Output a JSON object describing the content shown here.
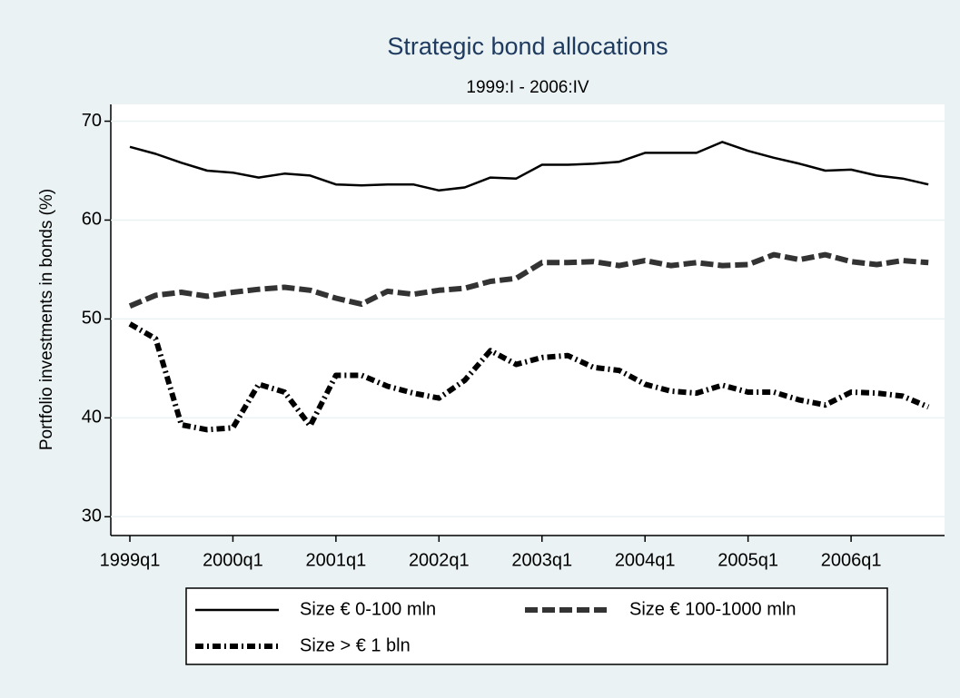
{
  "chart_data": {
    "type": "line",
    "title": "Strategic bond allocations",
    "subtitle": "1999:I - 2006:IV",
    "y_label": "Portfolio investments in bonds (%)",
    "categories": [
      "1999q1",
      null,
      null,
      null,
      "2000q1",
      null,
      null,
      null,
      "2001q1",
      null,
      null,
      null,
      "2002q1",
      null,
      null,
      null,
      "2003q1",
      null,
      null,
      null,
      "2004q1",
      null,
      null,
      null,
      "2005q1",
      null,
      null,
      null,
      "2006q1",
      null,
      null,
      null
    ],
    "series": [
      {
        "name": "Size € 0-100 mln",
        "color": "#000000",
        "style": "solid",
        "width": 2.5,
        "values": [
          67.4,
          66.7,
          65.8,
          65.0,
          64.8,
          64.3,
          64.7,
          64.5,
          63.6,
          63.5,
          63.6,
          63.6,
          63.0,
          63.3,
          64.3,
          64.2,
          65.6,
          65.6,
          65.7,
          65.9,
          66.8,
          66.8,
          66.8,
          67.9,
          67.0,
          66.3,
          65.7,
          65.0,
          65.1,
          64.5,
          64.2,
          63.6
        ]
      },
      {
        "name": "Size € 100-1000 mln",
        "color": "#333333",
        "style": "dash",
        "width": 6,
        "values": [
          51.3,
          52.4,
          52.7,
          52.3,
          52.7,
          53.0,
          53.2,
          52.9,
          52.1,
          51.5,
          52.8,
          52.5,
          52.9,
          53.1,
          53.8,
          54.1,
          55.7,
          55.7,
          55.8,
          55.4,
          55.9,
          55.4,
          55.7,
          55.4,
          55.5,
          56.5,
          56.0,
          56.5,
          55.8,
          55.5,
          55.9,
          55.7
        ]
      },
      {
        "name": "Size > € 1 bln",
        "color": "#000000",
        "style": "dash-dot",
        "width": 6,
        "values": [
          49.5,
          48.0,
          39.3,
          38.8,
          39.0,
          43.4,
          42.6,
          39.2,
          44.3,
          44.3,
          43.2,
          42.5,
          42.0,
          43.8,
          46.8,
          45.4,
          46.1,
          46.3,
          45.1,
          44.8,
          43.4,
          42.7,
          42.5,
          43.3,
          42.6,
          42.6,
          41.8,
          41.3,
          42.6,
          42.5,
          42.2,
          41.1
        ]
      }
    ],
    "ylim": [
      28.1,
      71.7
    ],
    "yticks": [
      30,
      40,
      50,
      60,
      70
    ],
    "grid": true,
    "legend": "bottom"
  }
}
